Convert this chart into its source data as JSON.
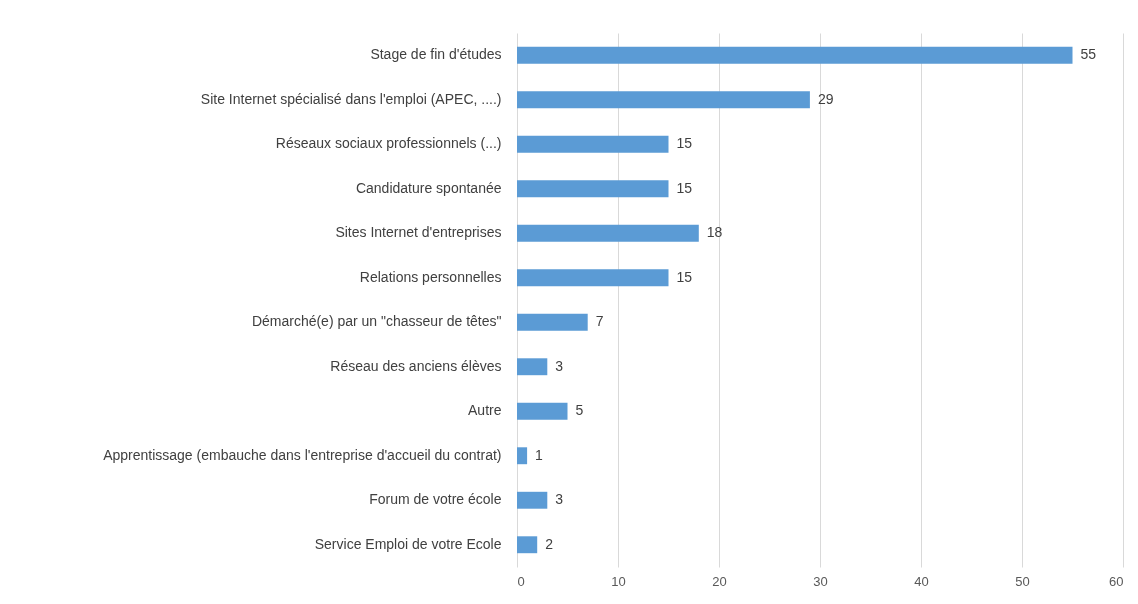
{
  "chart_data": {
    "type": "bar",
    "orientation": "horizontal",
    "categories": [
      "Stage de fin d'études",
      "Site Internet spécialisé dans l'emploi (APEC, ....)",
      "Réseaux sociaux professionnels (...)",
      "Candidature spontanée",
      "Sites Internet d'entreprises",
      "Relations personnelles",
      "Démarché(e) par un \"chasseur de têtes\"",
      "Réseau des anciens élèves",
      "Autre",
      "Apprentissage (embauche dans l'entreprise d'accueil du contrat)",
      "Forum de votre école",
      "Service Emploi de votre Ecole"
    ],
    "values": [
      55,
      29,
      15,
      15,
      18,
      15,
      7,
      3,
      5,
      1,
      3,
      2
    ],
    "color": "#5b9bd5",
    "xlim": [
      0,
      60
    ],
    "xticks": [
      0,
      10,
      20,
      30,
      40,
      50,
      60
    ],
    "grid": "x",
    "data_labels": true
  }
}
